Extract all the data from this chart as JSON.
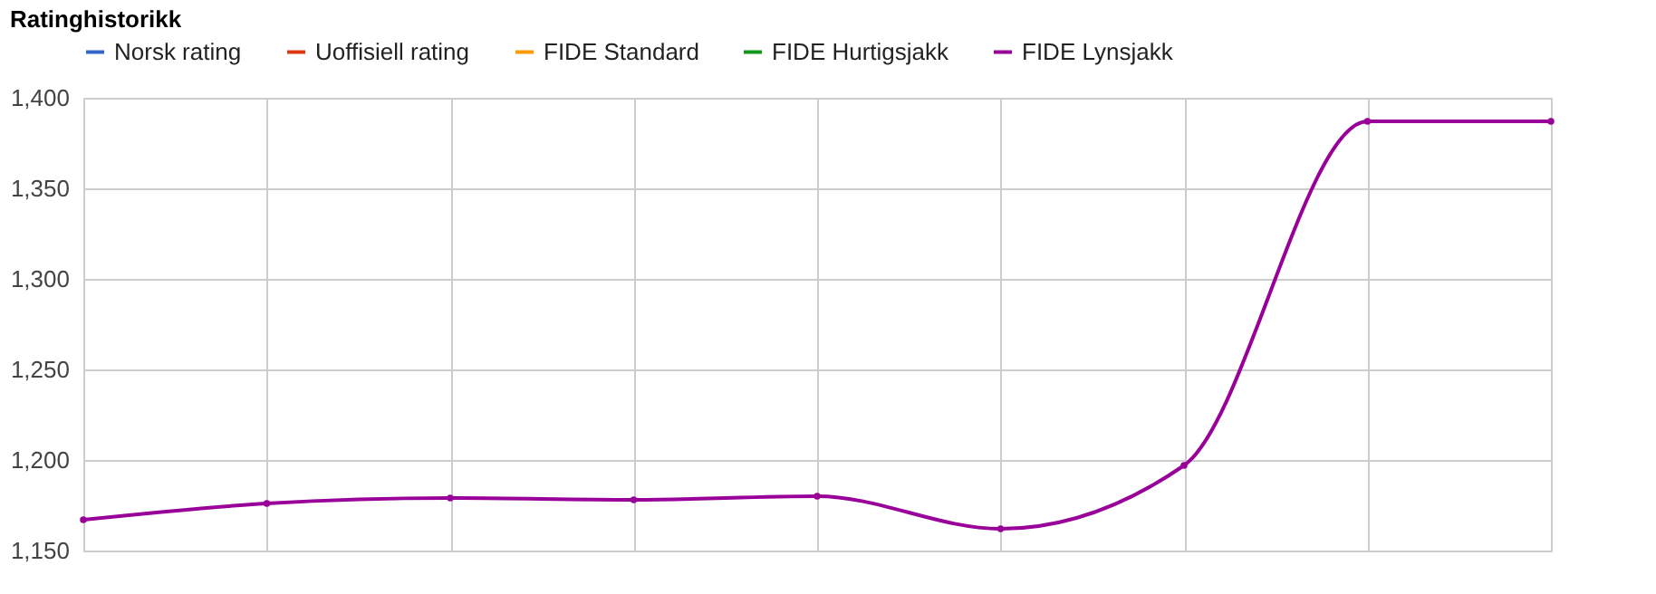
{
  "chart_data": {
    "type": "line",
    "title": "Ratinghistorikk",
    "categories": [
      null,
      null,
      null,
      null,
      null,
      null,
      null,
      null,
      null
    ],
    "series": [
      {
        "name": "Norsk rating",
        "color": "#3366cc",
        "values": [
          null,
          null,
          null,
          null,
          null,
          null,
          null,
          null,
          null
        ]
      },
      {
        "name": "Uoffisiell rating",
        "color": "#dc3912",
        "values": [
          null,
          null,
          null,
          null,
          null,
          null,
          null,
          null,
          null
        ]
      },
      {
        "name": "FIDE Standard",
        "color": "#ff9900",
        "values": [
          null,
          null,
          null,
          null,
          null,
          null,
          null,
          null,
          null
        ]
      },
      {
        "name": "FIDE Hurtigsjakk",
        "color": "#109618",
        "values": [
          null,
          null,
          null,
          null,
          null,
          null,
          null,
          null,
          null
        ]
      },
      {
        "name": "FIDE Lynsjakk",
        "color": "#990099",
        "values": [
          1167,
          1176,
          1179,
          1178,
          1180,
          1162,
          1197,
          1387,
          1387
        ]
      }
    ],
    "ylim": [
      1150,
      1400
    ],
    "yticks": [
      {
        "value": 1150,
        "label": "1,150"
      },
      {
        "value": 1200,
        "label": "1,200"
      },
      {
        "value": 1250,
        "label": "1,250"
      },
      {
        "value": 1300,
        "label": "1,300"
      },
      {
        "value": 1350,
        "label": "1,350"
      },
      {
        "value": 1400,
        "label": "1,400"
      }
    ],
    "grid": true,
    "legend": "top left",
    "tick_labels": "y",
    "marker": "circle",
    "line_style": "solid"
  }
}
